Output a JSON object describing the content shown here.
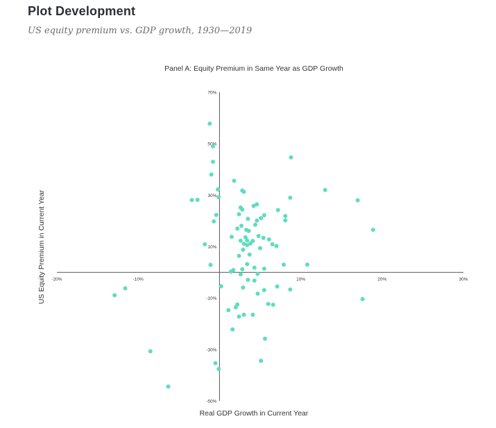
{
  "header": {
    "title": "Plot Development",
    "subtitle": "US equity premium vs. GDP growth, 1930—2019"
  },
  "colors": {
    "point": "#5fdcc0",
    "axis": "#555555"
  },
  "chart_data": {
    "type": "scatter",
    "title": "Panel A: Equity Premium in Same Year as GDP Growth",
    "xlabel": "Real GDP Growth in Current Year",
    "ylabel": "US Equity Premium in Current Year",
    "xlim": [
      -20,
      30
    ],
    "ylim": [
      -50,
      70
    ],
    "x_ticks": [
      {
        "value": -20,
        "label": "-20%"
      },
      {
        "value": -10,
        "label": "-10%"
      },
      {
        "value": 10,
        "label": "10%"
      },
      {
        "value": 20,
        "label": "20%"
      },
      {
        "value": 30,
        "label": "30%"
      }
    ],
    "y_ticks": [
      {
        "value": 70,
        "label": "70%"
      },
      {
        "value": 50,
        "label": "50%"
      },
      {
        "value": 30,
        "label": "30%"
      },
      {
        "value": 10,
        "label": "10%"
      },
      {
        "value": -10,
        "label": "-10%"
      },
      {
        "value": -30,
        "label": "-30%"
      },
      {
        "value": -50,
        "label": "-50%"
      }
    ],
    "grid": false,
    "points": [
      [
        -1.2,
        57.8
      ],
      [
        -0.8,
        49.0
      ],
      [
        -0.8,
        43.0
      ],
      [
        -1.0,
        38.0
      ],
      [
        8.8,
        44.7
      ],
      [
        13.0,
        32.0
      ],
      [
        17.0,
        28.0
      ],
      [
        18.9,
        16.5
      ],
      [
        -3.4,
        28.1
      ],
      [
        -2.7,
        28.2
      ],
      [
        -0.2,
        32.2
      ],
      [
        -0.1,
        29.2
      ],
      [
        1.8,
        35.6
      ],
      [
        2.8,
        31.8
      ],
      [
        3.0,
        31.3
      ],
      [
        8.7,
        29.0
      ],
      [
        4.2,
        25.8
      ],
      [
        4.6,
        26.4
      ],
      [
        2.6,
        25.2
      ],
      [
        2.8,
        24.4
      ],
      [
        7.2,
        24.2
      ],
      [
        8.1,
        21.9
      ],
      [
        8.1,
        20.2
      ],
      [
        5.5,
        22.2
      ],
      [
        2.4,
        22.6
      ],
      [
        -0.4,
        22.3
      ],
      [
        -0.7,
        19.8
      ],
      [
        3.5,
        20.8
      ],
      [
        4.6,
        20.1
      ],
      [
        5.1,
        21.1
      ],
      [
        2.2,
        17.0
      ],
      [
        4.4,
        18.5
      ],
      [
        2.7,
        18.1
      ],
      [
        3.3,
        16.5
      ],
      [
        3.6,
        16.1
      ],
      [
        1.5,
        13.8
      ],
      [
        3.2,
        13.6
      ],
      [
        4.8,
        14.1
      ],
      [
        5.4,
        13.4
      ],
      [
        6.1,
        12.8
      ],
      [
        3.4,
        12.4
      ],
      [
        4.1,
        12.2
      ],
      [
        2.6,
        12.3
      ],
      [
        3.0,
        11.1
      ],
      [
        3.8,
        11.2
      ],
      [
        3.4,
        10.6
      ],
      [
        6.5,
        10.9
      ],
      [
        7.0,
        10.2
      ],
      [
        5.0,
        9.4
      ],
      [
        -1.8,
        10.9
      ],
      [
        2.9,
        8.8
      ],
      [
        3.7,
        6.9
      ],
      [
        2.4,
        6.4
      ],
      [
        3.4,
        3.2
      ],
      [
        7.9,
        3.0
      ],
      [
        10.8,
        3.0
      ],
      [
        -1.1,
        2.9
      ],
      [
        4.3,
        1.8
      ],
      [
        5.5,
        1.4
      ],
      [
        2.8,
        1.2
      ],
      [
        1.7,
        0.9
      ],
      [
        1.4,
        0.3
      ],
      [
        4.7,
        -0.6
      ],
      [
        2.6,
        -0.8
      ],
      [
        3.5,
        -2.9
      ],
      [
        4.3,
        -3.2
      ],
      [
        2.9,
        -5.9
      ],
      [
        5.5,
        -6.9
      ],
      [
        7.1,
        -5.5
      ],
      [
        8.7,
        -6.7
      ],
      [
        0.2,
        -5.4
      ],
      [
        4.7,
        -8.3
      ],
      [
        17.6,
        -10.4
      ],
      [
        -12.9,
        -8.9
      ],
      [
        -11.6,
        -6.2
      ],
      [
        6.0,
        -12.3
      ],
      [
        6.6,
        -12.6
      ],
      [
        2.2,
        -12.5
      ],
      [
        2.0,
        -13.6
      ],
      [
        1.1,
        -14.7
      ],
      [
        3.0,
        -16.5
      ],
      [
        4.1,
        -16.5
      ],
      [
        2.4,
        -17.2
      ],
      [
        1.6,
        -22.2
      ],
      [
        5.6,
        -25.8
      ],
      [
        5.1,
        -34.4
      ],
      [
        -8.5,
        -30.7
      ],
      [
        -0.5,
        -35.3
      ],
      [
        -0.1,
        -37.6
      ],
      [
        -6.3,
        -44.4
      ]
    ]
  }
}
